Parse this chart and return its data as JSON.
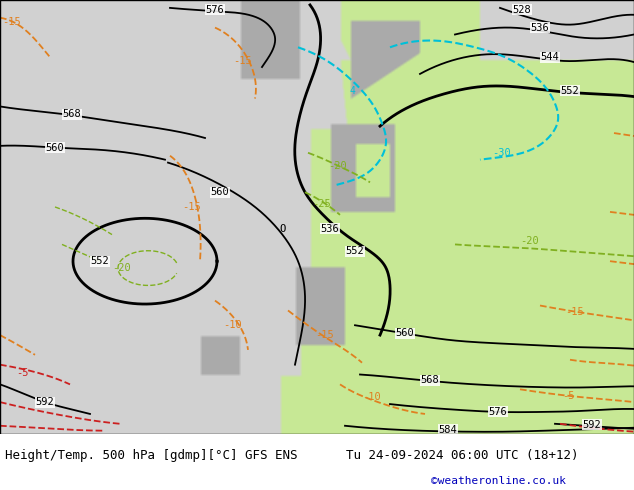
{
  "title_left": "Height/Temp. 500 hPa [gdmp][°C] GFS ENS",
  "title_right": "Tu 24-09-2024 06:00 UTC (18+12)",
  "credit": "©weatheronline.co.uk",
  "bg_ocean": "#d0d0d0",
  "bg_land_green": "#c8e896",
  "bg_land_gray": "#a8a8a8",
  "color_height": "#000000",
  "color_orange": "#e08020",
  "color_red": "#cc2020",
  "color_cyan": "#00c0d8",
  "color_green": "#80b020",
  "title_fontsize": 9,
  "credit_fontsize": 8,
  "credit_color": "#0000bb"
}
